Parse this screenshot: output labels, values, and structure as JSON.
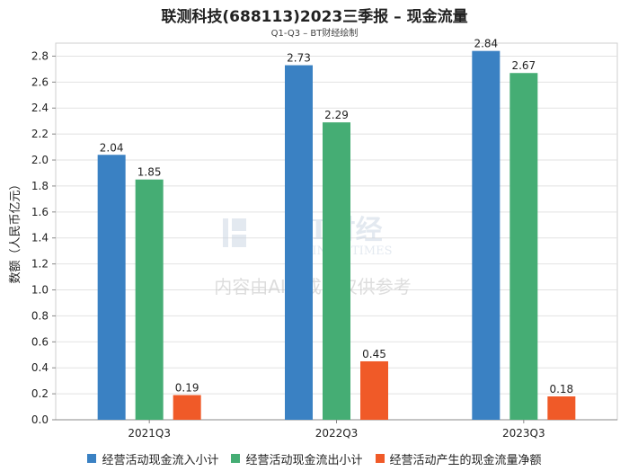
{
  "title": "联测科技(688113)2023三季报 – 现金流量",
  "subtitle": "Q1-Q3 – BT财经绘制",
  "watermark": {
    "brand": "BT财经",
    "brand_sub": "BUSINESSTIMES",
    "notice": "内容由AI生成，仅供参考"
  },
  "chart_data": {
    "type": "bar",
    "title": "联测科技(688113)2023三季报 – 现金流量",
    "subtitle": "Q1-Q3 – BT财经绘制",
    "xlabel": "",
    "ylabel": "数额（人民币亿元）",
    "ylim": [
      0,
      2.9
    ],
    "yticks": [
      0.0,
      0.2,
      0.4,
      0.6,
      0.8,
      1.0,
      1.2,
      1.4,
      1.6,
      1.8,
      2.0,
      2.2,
      2.4,
      2.6,
      2.8
    ],
    "grid": true,
    "legend_position": "bottom",
    "categories": [
      "2021Q3",
      "2022Q3",
      "2023Q3"
    ],
    "series": [
      {
        "name": "经营活动现金流入小计",
        "color": "#3a81c3",
        "values": [
          2.04,
          2.73,
          2.84
        ]
      },
      {
        "name": "经营活动现金流出小计",
        "color": "#45ad74",
        "values": [
          1.85,
          2.29,
          2.67
        ]
      },
      {
        "name": "经营活动产生的现金流量净额",
        "color": "#f05a28",
        "values": [
          0.19,
          0.45,
          0.18
        ]
      }
    ]
  }
}
